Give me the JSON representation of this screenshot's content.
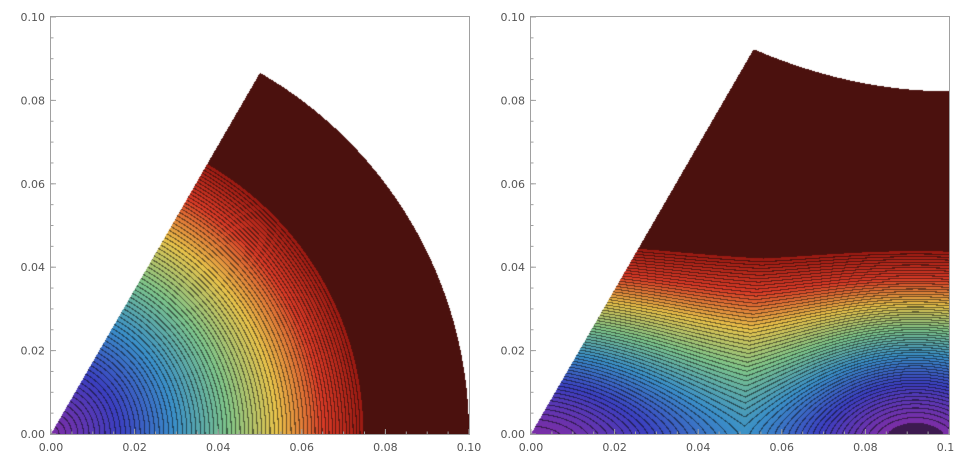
{
  "chart_data": [
    {
      "type": "contour",
      "title": "",
      "xlabel": "",
      "ylabel": "",
      "xlim": [
        0,
        0.1
      ],
      "ylim": [
        0,
        0.1
      ],
      "x_ticks": [
        "0.00",
        "0.02",
        "0.04",
        "0.06",
        "0.08",
        "0.10"
      ],
      "y_ticks": [
        "0.00",
        "0.02",
        "0.04",
        "0.06",
        "0.08",
        "0.10"
      ],
      "region": "circular sector from the origin, wedge angle 60°, radius 0.1",
      "color_scheme": [
        "#7b2ea6",
        "#3b3fc0",
        "#3a8fc8",
        "#7dc48a",
        "#e8c24a",
        "#d93a26",
        "#9a1a12"
      ],
      "contour_lines": "concentric arcs centered at the origin; dense toward the outer edge"
    },
    {
      "type": "contour",
      "title": "",
      "xlabel": "",
      "ylabel": "",
      "xlim": [
        0,
        0.1
      ],
      "ylim": [
        0,
        0.1
      ],
      "x_ticks": [
        "0.00",
        "0.02",
        "0.04",
        "0.06",
        "0.08",
        "0.10"
      ],
      "y_ticks": [
        "0.00",
        "0.02",
        "0.04",
        "0.06",
        "0.08",
        "0.10"
      ],
      "region": "region bounded by y=0, the 60° line, x=0.1 and a concave top arc",
      "color_scheme": [
        "#7b2ea6",
        "#3b3fc0",
        "#3a8fc8",
        "#7dc48a",
        "#e8c24a",
        "#d93a26",
        "#9a1a12"
      ],
      "contour_lines": "low-value wells near (0,0) and (0.09,0.005); near-horizontal curves rising to a dense red region at the top"
    }
  ]
}
